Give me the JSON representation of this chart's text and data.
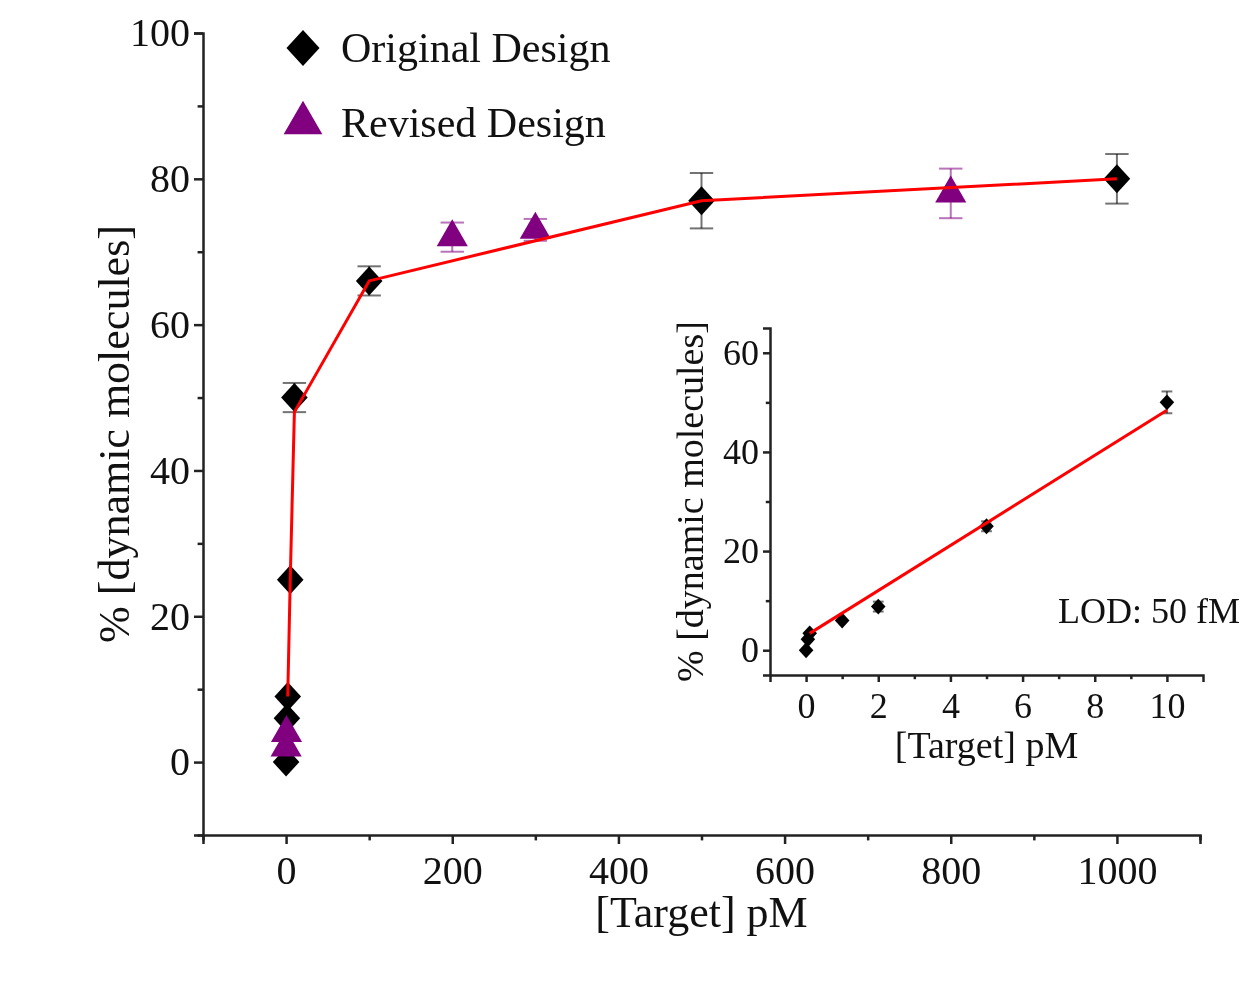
{
  "chart_data": [
    {
      "type": "scatter",
      "xlabel": "[Target] pM",
      "ylabel": "% [dynamic molecules]",
      "xlim": [
        -100,
        1100
      ],
      "ylim": [
        -10,
        100
      ],
      "xticks": [
        {
          "value": -100,
          "label": null
        },
        0,
        {
          "value": 100,
          "label": null
        },
        200,
        {
          "value": 300,
          "label": null
        },
        400,
        {
          "value": 500,
          "label": null
        },
        600,
        {
          "value": 700,
          "label": null
        },
        800,
        {
          "value": 900,
          "label": null
        },
        1000,
        {
          "value": 1100,
          "label": null
        }
      ],
      "yticks": [
        {
          "value": -10,
          "label": null
        },
        0,
        {
          "value": 10,
          "label": null
        },
        20,
        {
          "value": 30,
          "label": null
        },
        40,
        {
          "value": 50,
          "label": null
        },
        60,
        {
          "value": 70,
          "label": null
        },
        80,
        {
          "value": 90,
          "label": null
        },
        100
      ],
      "grid": false,
      "legend": "top left",
      "series": [
        {
          "type": "line",
          "color": "#ff0000",
          "x": [
            2,
            5,
            10,
            100,
            500,
            1000
          ],
          "values": [
            9,
            25,
            48,
            66,
            77,
            80
          ],
          "line_style": "solid"
        },
        {
          "name": "Original Design",
          "color": "#000000",
          "marker": "diamond",
          "x": [
            0,
            1,
            2,
            5,
            10,
            100,
            500,
            1000
          ],
          "values": [
            0,
            6,
            9,
            25,
            50,
            66,
            77,
            80
          ],
          "errors": [
            null,
            null,
            null,
            null,
            2,
            2,
            3.8,
            3.4
          ]
        },
        {
          "name": "Revised Design",
          "color": "#800080",
          "marker": "triangle",
          "x": [
            0.05,
            0.5,
            200,
            300,
            800
          ],
          "values": [
            2,
            4,
            72,
            73,
            78
          ],
          "errors": [
            null,
            null,
            2,
            1.5,
            3.4
          ]
        }
      ]
    },
    {
      "type": "scatter",
      "xlabel": "[Target] pM",
      "ylabel": "% [dynamic molecules]",
      "xlim": [
        -1,
        11
      ],
      "ylim": [
        -5,
        65
      ],
      "xticks": [
        0,
        {
          "value": 1,
          "label": null
        },
        2,
        {
          "value": 3,
          "label": null
        },
        4,
        {
          "value": 5,
          "label": null
        },
        6,
        {
          "value": 7,
          "label": null
        },
        8,
        {
          "value": 9,
          "label": null
        },
        10
      ],
      "yticks": [
        0,
        {
          "value": 10,
          "label": null
        },
        20,
        {
          "value": 30,
          "label": null
        },
        40,
        {
          "value": 50,
          "label": null
        },
        60
      ],
      "grid": false,
      "legend": false,
      "annotations": [
        "LOD: 50 fM"
      ],
      "series": [
        {
          "type": "line",
          "color": "#ff0000",
          "x": [
            0.1,
            10
          ],
          "values": [
            3.4,
            48.4
          ],
          "line_style": "solid"
        },
        {
          "color": "#000000",
          "marker": "diamond",
          "x": [
            0,
            0.05,
            0.1,
            1,
            2,
            5,
            10
          ],
          "values": [
            0,
            2.2,
            3.4,
            6,
            8.8,
            25,
            50
          ],
          "errors": [
            null,
            null,
            null,
            null,
            1,
            1,
            2.2
          ]
        }
      ]
    }
  ]
}
